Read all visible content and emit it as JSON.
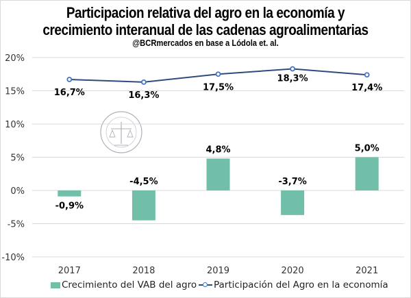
{
  "chart_data": {
    "type": "bar+line",
    "title": "Participacion relativa del agro en la economía y crecimiento interanual de las cadenas agroalimentarias",
    "title_lines": [
      "Participacion relativa del agro en la economía y",
      "crecimiento interanual de las cadenas agroalimentarias"
    ],
    "subtitle": "@BCRmercados  en base a Lódola et. al.",
    "xlabel": "",
    "ylabel": "",
    "categories": [
      "2017",
      "2018",
      "2019",
      "2020",
      "2021"
    ],
    "ylim": [
      -10,
      20
    ],
    "yticks": [
      20,
      15,
      10,
      5,
      0,
      -5,
      -10
    ],
    "ytick_labels": [
      "20%",
      "15%",
      "10%",
      "5%",
      "0%",
      "-5%",
      "-10%"
    ],
    "grid": true,
    "series": [
      {
        "name": "Crecimiento del VAB del agro",
        "type": "bar",
        "color": "#72bfa9",
        "values": [
          -0.9,
          -4.5,
          4.8,
          -3.7,
          5.0
        ],
        "labels": [
          "-0,9%",
          "-4,5%",
          "4,8%",
          "-3,7%",
          "5,0%"
        ]
      },
      {
        "name": "Participación del Agro en la economía",
        "type": "line",
        "color": "#2f4b7c",
        "marker_color": "#4472c4",
        "values": [
          16.7,
          16.3,
          17.5,
          18.3,
          17.4
        ],
        "labels": [
          "16,7%",
          "16,3%",
          "17,5%",
          "18,3%",
          "17,4%"
        ]
      }
    ],
    "legend_position": "bottom",
    "watermark": "Bolsa de Comercio de Rosario"
  }
}
